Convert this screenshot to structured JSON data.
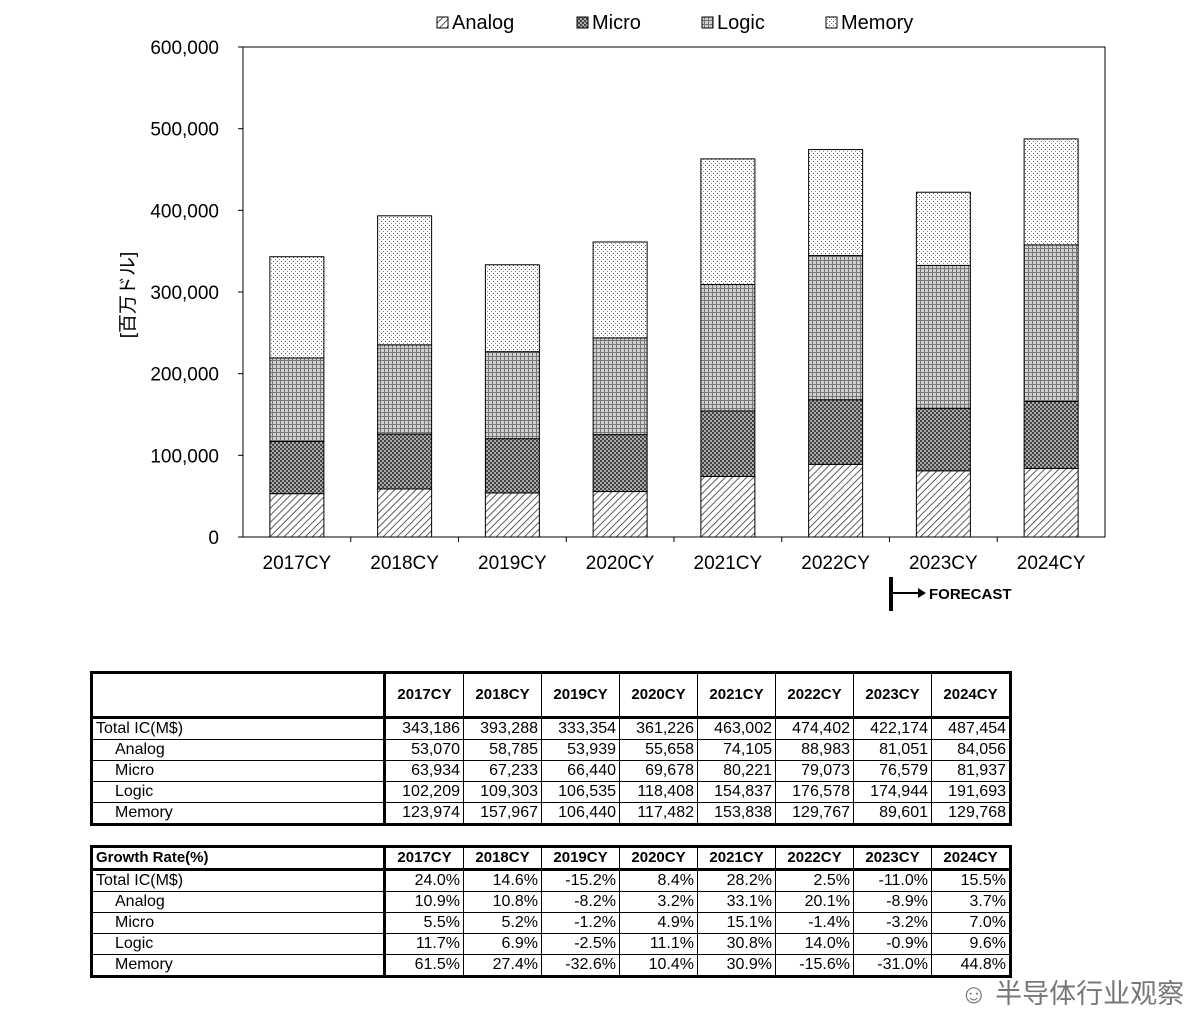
{
  "chart_data": {
    "type": "bar",
    "stacked": true,
    "categories": [
      "2017CY",
      "2018CY",
      "2019CY",
      "2020CY",
      "2021CY",
      "2022CY",
      "2023CY",
      "2024CY"
    ],
    "series": [
      {
        "name": "Analog",
        "pattern": "diagonal-hatch",
        "values": [
          53070,
          58785,
          53939,
          55658,
          74105,
          88983,
          81051,
          84056
        ]
      },
      {
        "name": "Micro",
        "pattern": "crosshatch",
        "values": [
          63934,
          67233,
          66440,
          69678,
          80221,
          79073,
          76579,
          81937
        ]
      },
      {
        "name": "Logic",
        "pattern": "fine-grid",
        "values": [
          102209,
          109303,
          106535,
          118408,
          154837,
          176578,
          174944,
          191693
        ]
      },
      {
        "name": "Memory",
        "pattern": "dots",
        "values": [
          123974,
          157967,
          106440,
          117482,
          153838,
          129767,
          89601,
          129768
        ]
      }
    ],
    "ylabel": "[百万ドル]",
    "ylim": [
      0,
      600000
    ],
    "yticks": [
      "0",
      "100,000",
      "200,000",
      "300,000",
      "400,000",
      "500,000",
      "600,000"
    ],
    "ytick_values": [
      0,
      100000,
      200000,
      300000,
      400000,
      500000,
      600000
    ],
    "legend": "top",
    "grid": false,
    "annotation": "FORECAST"
  },
  "table1": {
    "header": "",
    "columns": [
      "2017CY",
      "2018CY",
      "2019CY",
      "2020CY",
      "2021CY",
      "2022CY",
      "2023CY",
      "2024CY"
    ],
    "rows": [
      {
        "label": "Total IC(M$)",
        "values": [
          "343,186",
          "393,288",
          "333,354",
          "361,226",
          "463,002",
          "474,402",
          "422,174",
          "487,454"
        ]
      },
      {
        "label": "Analog",
        "values": [
          "53,070",
          "58,785",
          "53,939",
          "55,658",
          "74,105",
          "88,983",
          "81,051",
          "84,056"
        ]
      },
      {
        "label": "Micro",
        "values": [
          "63,934",
          "67,233",
          "66,440",
          "69,678",
          "80,221",
          "79,073",
          "76,579",
          "81,937"
        ]
      },
      {
        "label": "Logic",
        "values": [
          "102,209",
          "109,303",
          "106,535",
          "118,408",
          "154,837",
          "176,578",
          "174,944",
          "191,693"
        ]
      },
      {
        "label": "Memory",
        "values": [
          "123,974",
          "157,967",
          "106,440",
          "117,482",
          "153,838",
          "129,767",
          "89,601",
          "129,768"
        ]
      }
    ]
  },
  "table2": {
    "header": "Growth Rate(%)",
    "columns": [
      "2017CY",
      "2018CY",
      "2019CY",
      "2020CY",
      "2021CY",
      "2022CY",
      "2023CY",
      "2024CY"
    ],
    "rows": [
      {
        "label": "Total IC(M$)",
        "values": [
          "24.0%",
          "14.6%",
          "-15.2%",
          "8.4%",
          "28.2%",
          "2.5%",
          "-11.0%",
          "15.5%"
        ]
      },
      {
        "label": "Analog",
        "values": [
          "10.9%",
          "10.8%",
          "-8.2%",
          "3.2%",
          "33.1%",
          "20.1%",
          "-8.9%",
          "3.7%"
        ]
      },
      {
        "label": "Micro",
        "values": [
          "5.5%",
          "5.2%",
          "-1.2%",
          "4.9%",
          "15.1%",
          "-1.4%",
          "-3.2%",
          "7.0%"
        ]
      },
      {
        "label": "Logic",
        "values": [
          "11.7%",
          "6.9%",
          "-2.5%",
          "11.1%",
          "30.8%",
          "14.0%",
          "-0.9%",
          "9.6%"
        ]
      },
      {
        "label": "Memory",
        "values": [
          "61.5%",
          "27.4%",
          "-32.6%",
          "10.4%",
          "30.9%",
          "-15.6%",
          "-31.0%",
          "44.8%"
        ]
      }
    ]
  },
  "watermark": "半导体行业观察"
}
